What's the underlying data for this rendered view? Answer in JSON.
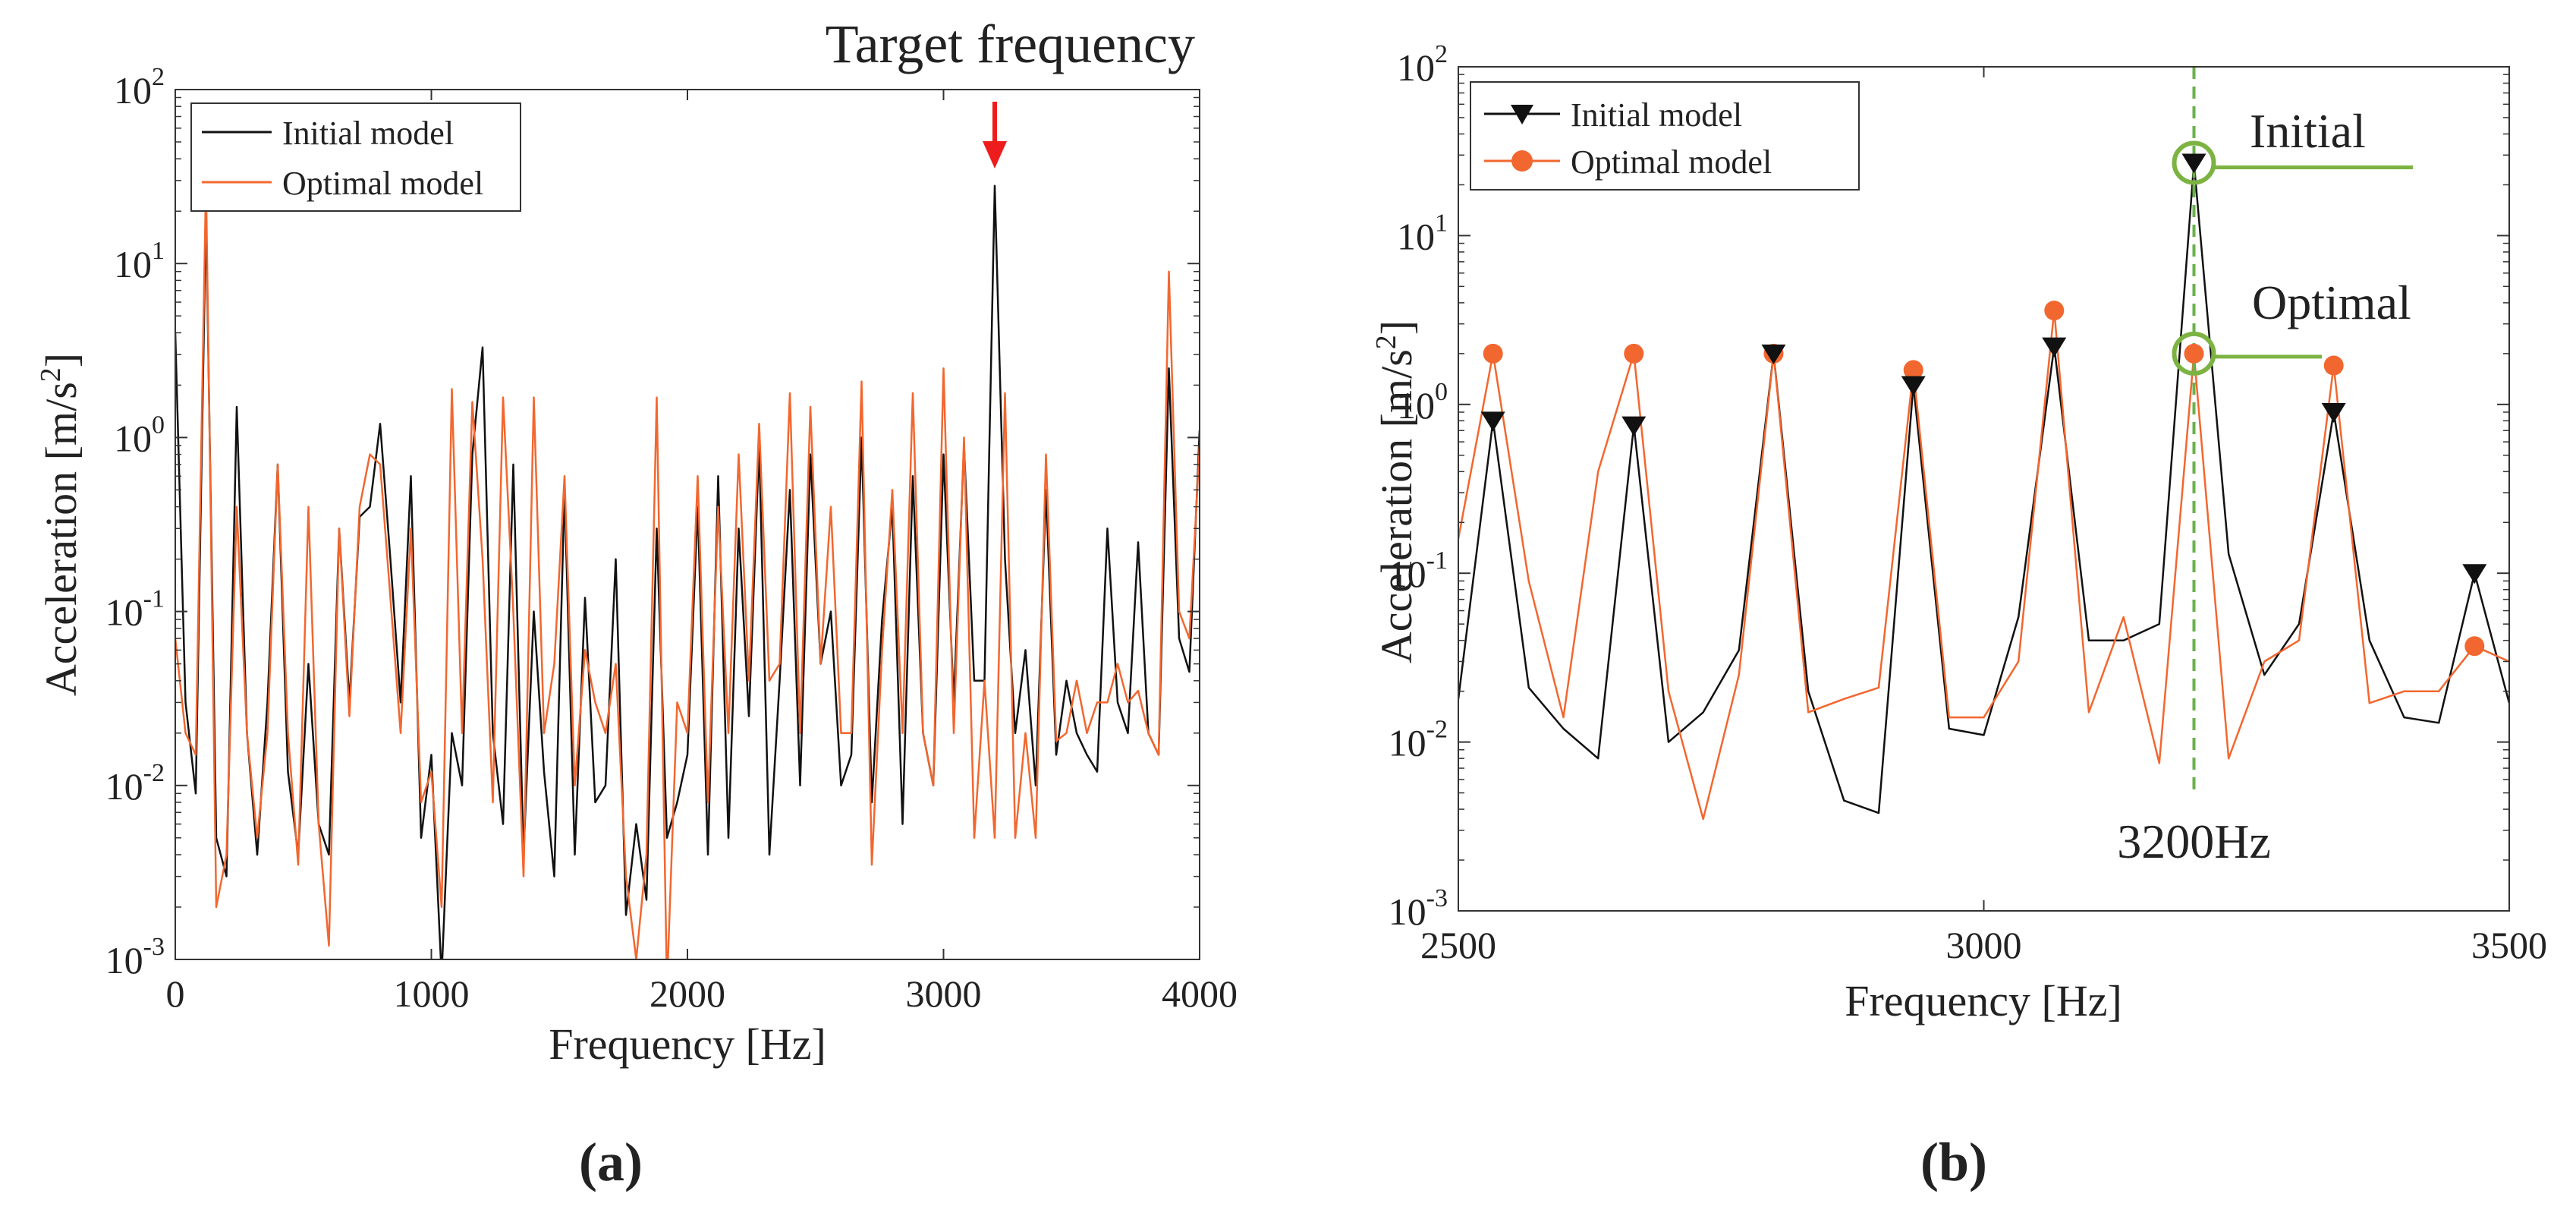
{
  "chart_data": [
    {
      "id": "a",
      "type": "line",
      "panel_label": "(a)",
      "title": "Target frequency",
      "xlabel": "Frequency [Hz]",
      "ylabel": "Acceleration [m/s2]",
      "yscale": "log",
      "xlim": [
        0,
        4000
      ],
      "ylim": [
        0.001,
        100
      ],
      "x_ticks": [
        0,
        1000,
        2000,
        3000,
        4000
      ],
      "y_ticks": [
        {
          "v": 0.001,
          "base": "10",
          "exp": "-3"
        },
        {
          "v": 0.01,
          "base": "10",
          "exp": "-2"
        },
        {
          "v": 0.1,
          "base": "10",
          "exp": "-1"
        },
        {
          "v": 1,
          "base": "10",
          "exp": "0"
        },
        {
          "v": 10,
          "base": "10",
          "exp": "1"
        },
        {
          "v": 100,
          "base": "10",
          "exp": "2"
        }
      ],
      "legend_position": "top-left",
      "annotation": {
        "type": "arrow",
        "x": 3200,
        "y": 28,
        "color": "#ee1c1c"
      },
      "series": [
        {
          "name": "Initial model",
          "color": "#111111",
          "x": [
            0,
            40,
            80,
            120,
            160,
            200,
            240,
            280,
            320,
            360,
            400,
            440,
            480,
            520,
            560,
            600,
            640,
            680,
            720,
            760,
            800,
            840,
            880,
            920,
            960,
            1000,
            1040,
            1080,
            1120,
            1160,
            1200,
            1240,
            1280,
            1320,
            1360,
            1400,
            1440,
            1480,
            1520,
            1560,
            1600,
            1640,
            1680,
            1720,
            1760,
            1800,
            1840,
            1880,
            1920,
            1960,
            2000,
            2040,
            2080,
            2120,
            2160,
            2200,
            2240,
            2280,
            2320,
            2360,
            2400,
            2440,
            2480,
            2520,
            2560,
            2600,
            2640,
            2680,
            2720,
            2760,
            2800,
            2840,
            2880,
            2920,
            2960,
            3000,
            3040,
            3080,
            3120,
            3160,
            3200,
            3240,
            3280,
            3320,
            3360,
            3400,
            3440,
            3480,
            3520,
            3560,
            3600,
            3640,
            3680,
            3720,
            3760,
            3800,
            3840,
            3880,
            3920,
            3960,
            4000
          ],
          "values": [
            4,
            0.03,
            0.009,
            20,
            0.005,
            0.003,
            1.5,
            0.02,
            0.004,
            0.03,
            0.7,
            0.012,
            0.004,
            0.05,
            0.006,
            0.004,
            0.3,
            0.03,
            0.35,
            0.4,
            1.2,
            0.2,
            0.03,
            0.6,
            0.005,
            0.015,
            0.0008,
            0.02,
            0.01,
            0.8,
            3.3,
            0.02,
            0.006,
            0.7,
            0.004,
            0.1,
            0.012,
            0.003,
            0.5,
            0.004,
            0.12,
            0.008,
            0.01,
            0.2,
            0.0018,
            0.006,
            0.0022,
            0.3,
            0.005,
            0.008,
            0.015,
            0.4,
            0.004,
            0.6,
            0.005,
            0.3,
            0.025,
            0.9,
            0.004,
            0.04,
            0.5,
            0.01,
            0.8,
            0.05,
            0.1,
            0.01,
            0.015,
            1,
            0.008,
            0.09,
            0.4,
            0.006,
            0.6,
            0.02,
            0.01,
            0.8,
            0.03,
            0.9,
            0.04,
            0.04,
            28,
            0.2,
            0.02,
            0.06,
            0.01,
            0.5,
            0.015,
            0.04,
            0.02,
            0.015,
            0.012,
            0.3,
            0.03,
            0.02,
            0.25,
            0.02,
            0.015,
            2.5,
            0.07,
            0.045,
            1.1
          ]
        },
        {
          "name": "Optimal model",
          "color": "#f2672f",
          "x": [
            0,
            40,
            80,
            120,
            160,
            200,
            240,
            280,
            320,
            360,
            400,
            440,
            480,
            520,
            560,
            600,
            640,
            680,
            720,
            760,
            800,
            840,
            880,
            920,
            960,
            1000,
            1040,
            1080,
            1120,
            1160,
            1200,
            1240,
            1280,
            1320,
            1360,
            1400,
            1440,
            1480,
            1520,
            1560,
            1600,
            1640,
            1680,
            1720,
            1760,
            1800,
            1840,
            1880,
            1920,
            1960,
            2000,
            2040,
            2080,
            2120,
            2160,
            2200,
            2240,
            2280,
            2320,
            2360,
            2400,
            2440,
            2480,
            2520,
            2560,
            2600,
            2640,
            2680,
            2720,
            2760,
            2800,
            2840,
            2880,
            2920,
            2960,
            3000,
            3040,
            3080,
            3120,
            3160,
            3200,
            3240,
            3280,
            3320,
            3360,
            3400,
            3440,
            3480,
            3520,
            3560,
            3600,
            3640,
            3680,
            3720,
            3760,
            3800,
            3840,
            3880,
            3920,
            3960,
            4000
          ],
          "values": [
            0.07,
            0.02,
            0.015,
            30,
            0.002,
            0.004,
            0.4,
            0.02,
            0.005,
            0.02,
            0.7,
            0.02,
            0.0035,
            0.4,
            0.006,
            0.0012,
            0.3,
            0.025,
            0.4,
            0.8,
            0.7,
            0.12,
            0.02,
            0.3,
            0.008,
            0.012,
            0.002,
            1.9,
            0.02,
            1.6,
            0.2,
            0.008,
            1.7,
            0.1,
            0.003,
            1.7,
            0.02,
            0.05,
            0.6,
            0.01,
            0.06,
            0.03,
            0.02,
            0.05,
            0.003,
            0.001,
            0.004,
            1.7,
            0.0007,
            0.03,
            0.02,
            0.6,
            0.008,
            0.4,
            0.02,
            0.8,
            0.04,
            1.2,
            0.04,
            0.05,
            1.8,
            0.02,
            1.5,
            0.05,
            0.4,
            0.02,
            0.02,
            2.1,
            0.0035,
            0.06,
            0.5,
            0.02,
            1.8,
            0.02,
            0.01,
            2.5,
            0.02,
            1,
            0.005,
            0.04,
            0.005,
            1.8,
            0.005,
            0.02,
            0.005,
            0.8,
            0.018,
            0.02,
            0.04,
            0.02,
            0.03,
            0.03,
            0.05,
            0.03,
            0.035,
            0.02,
            0.015,
            9,
            0.1,
            0.07,
            0.9
          ]
        }
      ]
    },
    {
      "id": "b",
      "type": "line",
      "panel_label": "(b)",
      "title": "",
      "xlabel": "Frequency [Hz]",
      "ylabel": "Acceleration [m/s2]",
      "yscale": "log",
      "xlim": [
        2500,
        3500
      ],
      "ylim": [
        0.001,
        100
      ],
      "x_ticks": [
        2500,
        3000,
        3500
      ],
      "y_ticks": [
        {
          "v": 0.001,
          "base": "10",
          "exp": "-3"
        },
        {
          "v": 0.01,
          "base": "10",
          "exp": "-2"
        },
        {
          "v": 0.1,
          "base": "10",
          "exp": "-1"
        },
        {
          "v": 1,
          "base": "10",
          "exp": "0"
        },
        {
          "v": 10,
          "base": "10",
          "exp": "1"
        },
        {
          "v": 100,
          "base": "10",
          "exp": "2"
        }
      ],
      "legend_position": "top-left",
      "vline": {
        "x": 3200,
        "label": "3200Hz",
        "color": "#6ab04c"
      },
      "callouts": [
        {
          "label": "Initial",
          "x": 3200,
          "y": 27,
          "color": "#7cb342"
        },
        {
          "label": "Optimal",
          "x": 3200,
          "y": 2.0,
          "color": "#7cb342"
        }
      ],
      "series": [
        {
          "name": "Initial model",
          "color": "#111111",
          "marker": "triangle-down",
          "x": [
            2500,
            2533,
            2567,
            2600,
            2633,
            2667,
            2700,
            2733,
            2767,
            2800,
            2833,
            2867,
            2900,
            2933,
            2967,
            3000,
            3033,
            3067,
            3100,
            3133,
            3167,
            3200,
            3233,
            3267,
            3300,
            3333,
            3367,
            3400,
            3433,
            3467,
            3500
          ],
          "values": [
            0.018,
            0.8,
            0.021,
            0.012,
            0.008,
            0.75,
            0.01,
            0.015,
            0.035,
            2.0,
            0.02,
            0.0045,
            0.0038,
            1.3,
            0.012,
            0.011,
            0.055,
            2.2,
            0.04,
            0.04,
            0.05,
            27,
            0.13,
            0.025,
            0.05,
            0.9,
            0.04,
            0.014,
            0.013,
            0.1,
            0.017
          ],
          "marker_x": [
            2533,
            2667,
            2800,
            2933,
            3067,
            3200,
            3333,
            3467
          ],
          "marker_values": [
            0.8,
            0.75,
            2.0,
            1.3,
            2.2,
            27,
            0.9,
            0.1
          ]
        },
        {
          "name": "Optimal model",
          "color": "#f2672f",
          "marker": "circle",
          "x": [
            2500,
            2533,
            2567,
            2600,
            2633,
            2667,
            2700,
            2733,
            2767,
            2800,
            2833,
            2867,
            2900,
            2933,
            2967,
            3000,
            3033,
            3067,
            3100,
            3133,
            3167,
            3200,
            3233,
            3267,
            3300,
            3333,
            3367,
            3400,
            3433,
            3467,
            3500
          ],
          "values": [
            0.16,
            2.0,
            0.09,
            0.014,
            0.4,
            2.0,
            0.02,
            0.0035,
            0.025,
            2.0,
            0.015,
            0.018,
            0.021,
            1.6,
            0.014,
            0.014,
            0.03,
            3.6,
            0.015,
            0.055,
            0.0075,
            2.0,
            0.008,
            0.03,
            0.04,
            1.7,
            0.017,
            0.02,
            0.02,
            0.037,
            0.03
          ],
          "marker_x": [
            2533,
            2667,
            2800,
            2933,
            3067,
            3200,
            3333,
            3467
          ],
          "marker_values": [
            2.0,
            2.0,
            2.0,
            1.6,
            3.6,
            2.0,
            1.7,
            0.037
          ]
        }
      ]
    }
  ]
}
